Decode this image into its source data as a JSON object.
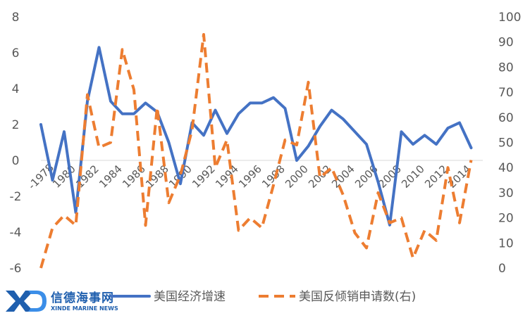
{
  "chart_data": {
    "type": "line",
    "x": [
      1978,
      1979,
      1980,
      1981,
      1982,
      1983,
      1984,
      1985,
      1986,
      1987,
      1988,
      1989,
      1990,
      1991,
      1992,
      1993,
      1994,
      1995,
      1996,
      1997,
      1998,
      1999,
      2000,
      2001,
      2002,
      2003,
      2004,
      2005,
      2006,
      2007,
      2008,
      2009,
      2010,
      2011,
      2012,
      2013,
      2014,
      2015,
      2016
    ],
    "x_tick_labels": [
      "1978",
      "1980",
      "1982",
      "1984",
      "1986",
      "1988",
      "1990",
      "1992",
      "1994",
      "1996",
      "1998",
      "2000",
      "2002",
      "2004",
      "2006",
      "2008",
      "2010",
      "2012",
      "2014"
    ],
    "x_tick_label_texts": [
      "-1978",
      "1980",
      "1982",
      "1984",
      "1986",
      "1988",
      "1990",
      "1992",
      "1994",
      "1996",
      "1998",
      "2000",
      "2002",
      "2004",
      "2006",
      "2008",
      "2010",
      "2012",
      "2014"
    ],
    "y_left_ticks": [
      "8",
      "6",
      "4",
      "2",
      "0",
      "-2",
      "-4",
      "-6"
    ],
    "y_right_ticks": [
      "100",
      "90",
      "80",
      "70",
      "60",
      "50",
      "40",
      "30",
      "20",
      "10",
      "0"
    ],
    "ylim_left": [
      -6,
      8
    ],
    "ylim_right": [
      0,
      100
    ],
    "series": [
      {
        "name": "美国经济增速",
        "axis": "left",
        "color": "#4472c4",
        "dash": "solid",
        "values": [
          2.0,
          -1.1,
          1.6,
          -2.9,
          3.3,
          6.3,
          3.3,
          2.6,
          2.6,
          3.2,
          2.7,
          1.0,
          -1.3,
          2.1,
          1.4,
          2.8,
          1.5,
          2.6,
          3.2,
          3.2,
          3.5,
          2.9,
          0.0,
          0.8,
          1.9,
          2.8,
          2.3,
          1.6,
          0.9,
          -1.2,
          -3.6,
          1.6,
          0.9,
          1.4,
          0.9,
          1.8,
          2.1,
          0.7,
          null
        ]
      },
      {
        "name": "美国反倾销申请数(右)",
        "axis": "right",
        "color": "#ed7d31",
        "dash": "dashed",
        "values": [
          0,
          16,
          21,
          17,
          69,
          48,
          50,
          87,
          71,
          17,
          64,
          26,
          37,
          55,
          93,
          40,
          51,
          15,
          20,
          16,
          33,
          51,
          49,
          74,
          36,
          40,
          29,
          14,
          8,
          30,
          18,
          20,
          4,
          15,
          11,
          40,
          18,
          43,
          null
        ]
      }
    ],
    "legend": {
      "position": "bottom",
      "entries": [
        "美国经济增速",
        "美国反倾销申请数(右)"
      ]
    },
    "grid": false
  },
  "watermark": {
    "brand": "信德海事网",
    "sub": "XINDE MARINE NEWS"
  }
}
